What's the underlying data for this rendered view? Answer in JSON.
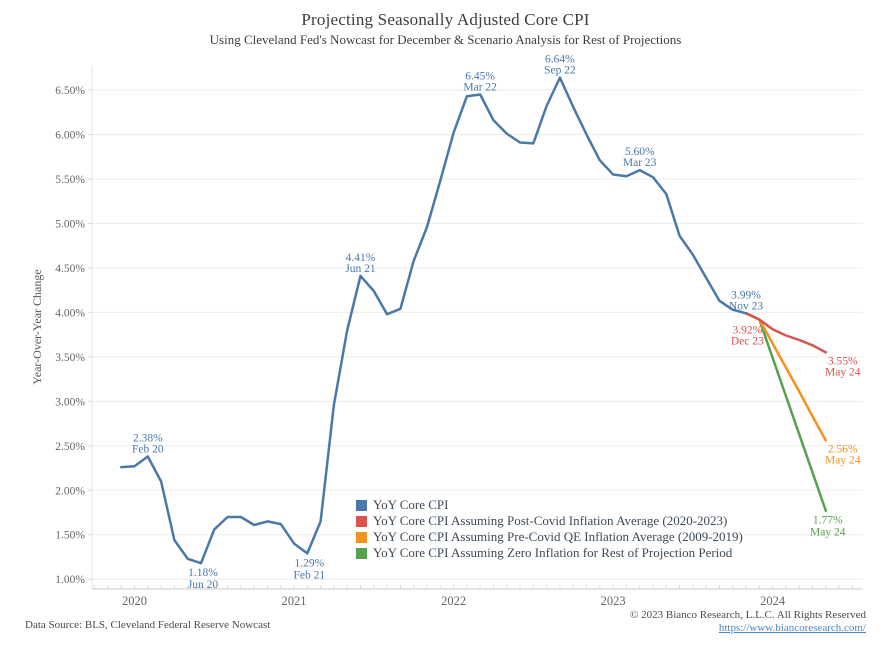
{
  "title": "Projecting Seasonally Adjusted Core CPI",
  "subtitle": "Using Cleveland Fed's Nowcast for December & Scenario Analysis for Rest of Projections",
  "footer": {
    "data_source": "Data Source: BLS, Cleveland Federal Reserve Nowcast",
    "copyright": "© 2023 Bianco Research, L.L.C. All Rights Reserved",
    "link": "https://www.biancoresearch.com/"
  },
  "chart_data": {
    "type": "line",
    "title": "Projecting Seasonally Adjusted Core CPI",
    "xlabel": "",
    "ylabel": "Year-Over-Year Change",
    "x_unit": "month",
    "x_start": "Dec 2019",
    "xlim_months": [
      -2.2,
      55.8
    ],
    "grid": "horizontal",
    "legend_position": "inside-bottom-center",
    "x_axis": {
      "tick_labels": [
        {
          "m": 1,
          "label": "2020"
        },
        {
          "m": 13,
          "label": "2021"
        },
        {
          "m": 25,
          "label": "2022"
        },
        {
          "m": 37,
          "label": "2023"
        },
        {
          "m": 49,
          "label": "2024"
        }
      ],
      "minor_ticks_every_month": true
    },
    "y_axis": {
      "ylim": [
        0.89,
        6.77
      ],
      "tick_suffix": "%",
      "ticks": [
        {
          "v": 1.0,
          "label": "1.00%"
        },
        {
          "v": 1.5,
          "label": "1.50%"
        },
        {
          "v": 2.0,
          "label": "2.00%"
        },
        {
          "v": 2.5,
          "label": "2.50%"
        },
        {
          "v": 3.0,
          "label": "3.00%"
        },
        {
          "v": 3.5,
          "label": "3.50%"
        },
        {
          "v": 4.0,
          "label": "4.00%"
        },
        {
          "v": 4.5,
          "label": "4.50%"
        },
        {
          "v": 5.0,
          "label": "5.00%"
        },
        {
          "v": 5.5,
          "label": "5.50%"
        },
        {
          "v": 6.0,
          "label": "6.00%"
        },
        {
          "v": 6.5,
          "label": "6.50%"
        }
      ]
    },
    "series": [
      {
        "id": "cpi",
        "legend_label": "YoY Core CPI",
        "color": "#4A79A9",
        "start_month": 0,
        "months_note": "Dec 2019 through Nov 2023, monthly",
        "values": [
          2.26,
          2.27,
          2.38,
          2.1,
          1.44,
          1.23,
          1.18,
          1.56,
          1.7,
          1.7,
          1.61,
          1.65,
          1.62,
          1.4,
          1.29,
          1.65,
          2.96,
          3.8,
          4.41,
          4.24,
          3.98,
          4.04,
          4.58,
          4.96,
          5.48,
          6.02,
          6.43,
          6.45,
          6.16,
          6.01,
          5.91,
          5.9,
          6.32,
          6.64,
          6.31,
          6.0,
          5.71,
          5.55,
          5.53,
          5.6,
          5.52,
          5.33,
          4.86,
          4.65,
          4.39,
          4.13,
          4.03,
          3.99
        ]
      },
      {
        "id": "post_covid",
        "legend_label": "YoY Core CPI Assuming Post-Covid Inflation Average (2020-2023)",
        "color": "#D9534F",
        "start_month": 47,
        "months_note": "Nov 2023 through May 2024, monthly",
        "values": [
          3.99,
          3.92,
          3.81,
          3.74,
          3.69,
          3.63,
          3.55
        ]
      },
      {
        "id": "pre_covid_qe",
        "legend_label": "YoY Core CPI Assuming Pre-Covid QE Inflation Average (2009-2019)",
        "color": "#F5921E",
        "start_month": 47,
        "months_note": "Nov 2023 through May 2024, monthly",
        "values": [
          3.99,
          3.92,
          3.65,
          3.38,
          3.11,
          2.83,
          2.56
        ]
      },
      {
        "id": "zero_inflation",
        "legend_label": "YoY Core CPI Assuming Zero Inflation for Rest of Projection Period",
        "color": "#55A14E",
        "start_month": 47,
        "months_note": "Nov 2023 through May 2024, monthly",
        "values": [
          3.99,
          3.92,
          3.49,
          3.06,
          2.63,
          2.2,
          1.77
        ]
      }
    ],
    "annotations": [
      {
        "id": "feb-20",
        "series": "cpi",
        "month": 2,
        "value": 2.38,
        "value_label": "2.38%",
        "date_label": "Feb 20",
        "placement": "above"
      },
      {
        "id": "jun-20",
        "series": "cpi",
        "month": 6,
        "value": 1.18,
        "value_label": "1.18%",
        "date_label": "Jun 20",
        "placement": "below"
      },
      {
        "id": "feb-21",
        "series": "cpi",
        "month": 14,
        "value": 1.29,
        "value_label": "1.29%",
        "date_label": "Feb 21",
        "placement": "below"
      },
      {
        "id": "jun-21",
        "series": "cpi",
        "month": 18,
        "value": 4.41,
        "value_label": "4.41%",
        "date_label": "Jun 21",
        "placement": "above"
      },
      {
        "id": "mar-22",
        "series": "cpi",
        "month": 27,
        "value": 6.45,
        "value_label": "6.45%",
        "date_label": "Mar 22",
        "placement": "above"
      },
      {
        "id": "sep-22",
        "series": "cpi",
        "month": 33,
        "value": 6.64,
        "value_label": "6.64%",
        "date_label": "Sep 22",
        "placement": "above"
      },
      {
        "id": "mar-23",
        "series": "cpi",
        "month": 39,
        "value": 5.6,
        "value_label": "5.60%",
        "date_label": "Mar 23",
        "placement": "above"
      },
      {
        "id": "nov-23",
        "series": "cpi",
        "month": 47,
        "value": 3.99,
        "value_label": "3.99%",
        "date_label": "Nov 23",
        "placement": "above"
      },
      {
        "id": "dec-23",
        "series": "post_covid",
        "month": 48,
        "value": 3.92,
        "value_label": "3.92%",
        "date_label": "Dec 23",
        "placement": "below-left"
      },
      {
        "id": "may-24-post-covid",
        "series": "post_covid",
        "month": 53,
        "value": 3.55,
        "value_label": "3.55%",
        "date_label": "May 24",
        "placement": "right-below"
      },
      {
        "id": "may-24-pre-covid",
        "series": "pre_covid_qe",
        "month": 53,
        "value": 2.56,
        "value_label": "2.56%",
        "date_label": "May 24",
        "placement": "right-below"
      },
      {
        "id": "may-24-zero",
        "series": "zero_inflation",
        "month": 53,
        "value": 1.77,
        "value_label": "1.77%",
        "date_label": "May 24",
        "placement": "below"
      }
    ],
    "style_colors": {
      "gridline": "#EDEDED",
      "axis_line": "#C9C9C9",
      "tick": "#DCDCDC",
      "tick_label": "#666666",
      "title_text": "#3d3d3d"
    }
  }
}
